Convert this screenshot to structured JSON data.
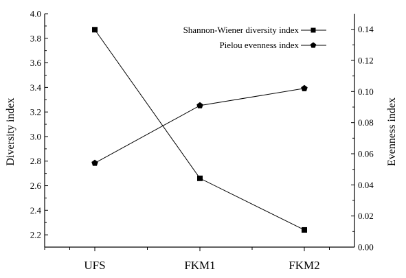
{
  "chart_data": {
    "type": "line",
    "categories": [
      "UFS",
      "FKM1",
      "FKM2"
    ],
    "y_left": {
      "label": "Diversity index",
      "ylim": [
        2.1,
        4.0
      ],
      "ticks": [
        "2.2",
        "2.4",
        "2.6",
        "2.8",
        "3.0",
        "3.2",
        "3.4",
        "3.6",
        "3.8",
        "4.0"
      ]
    },
    "y_right": {
      "label": "Evenness index",
      "ylim": [
        0.0,
        0.15
      ],
      "ticks": [
        "0.00",
        "0.02",
        "0.04",
        "0.06",
        "0.08",
        "0.10",
        "0.12",
        "0.14"
      ]
    },
    "series": [
      {
        "name": "Shannon-Wiener diversity index",
        "axis": "left",
        "marker": "square",
        "values": [
          3.87,
          2.66,
          2.24
        ]
      },
      {
        "name": "Pielou evenness index",
        "axis": "right",
        "marker": "pentagon",
        "values": [
          0.054,
          0.091,
          0.102
        ]
      }
    ],
    "legend_position": "top-right",
    "grid": false,
    "colors": {
      "line": "#000000",
      "marker": "#000000"
    }
  }
}
